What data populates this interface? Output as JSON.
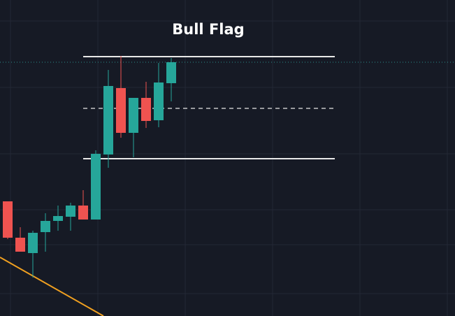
{
  "chart_data": {
    "type": "candlestick",
    "title": "Bull Flag",
    "open": [
      164,
      112,
      90,
      120,
      136,
      142,
      158,
      138,
      231,
      326,
      262,
      312,
      280,
      333
    ],
    "high": [
      164,
      127,
      122,
      147,
      158,
      162,
      180,
      237,
      352,
      372,
      312,
      335,
      362,
      369
    ],
    "low": [
      110,
      92,
      55,
      92,
      122,
      122,
      138,
      138,
      212,
      255,
      227,
      269,
      270,
      307
    ],
    "close": [
      112,
      92,
      119,
      136,
      143,
      158,
      138,
      232,
      329,
      262,
      312,
      279,
      334,
      363
    ],
    "up_color": "#26a69a",
    "down_color": "#ef5350",
    "levels": [
      371,
      297,
      225
    ],
    "ylim": [
      0,
      452
    ]
  }
}
